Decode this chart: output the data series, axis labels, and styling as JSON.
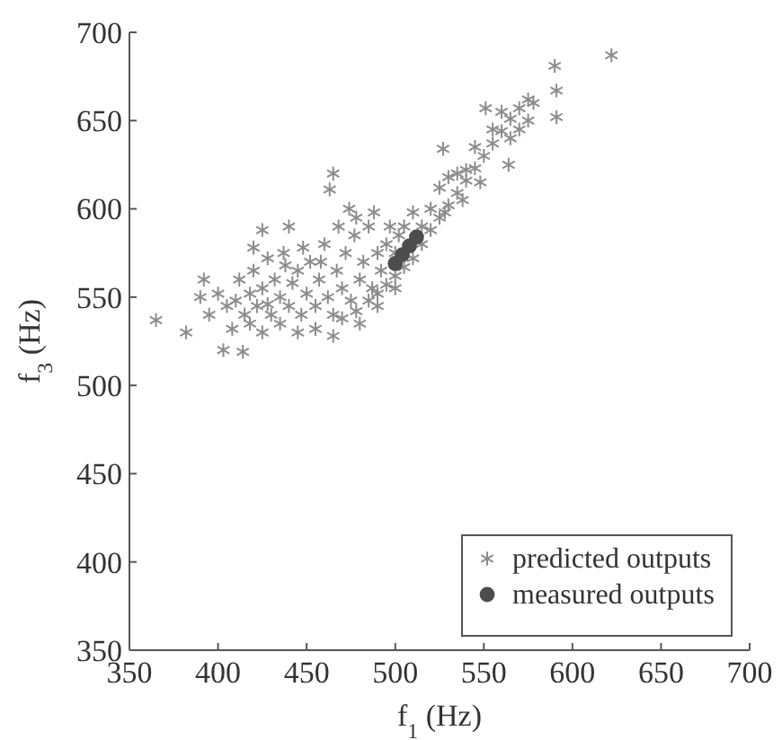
{
  "chart_data": {
    "type": "scatter",
    "xlabel": "f$_{1}$ (Hz)",
    "ylabel": "f$_{3}$ (Hz)",
    "xlim": [
      350,
      700
    ],
    "ylim": [
      350,
      700
    ],
    "xticks": [
      350,
      400,
      450,
      500,
      550,
      600,
      650,
      700
    ],
    "yticks": [
      350,
      400,
      450,
      500,
      550,
      600,
      650,
      700
    ],
    "grid": false,
    "legend": "bottom right",
    "series": [
      {
        "name": "predicted outputs",
        "color": "#8c8c8c",
        "marker": "cross",
        "x": [
          365,
          382,
          390,
          403,
          414,
          465,
          463,
          425,
          474,
          551,
          622,
          590,
          591,
          591,
          564,
          527,
          470,
          478,
          485,
          490,
          495,
          500,
          505,
          510,
          515,
          520,
          525,
          530,
          535,
          540,
          545,
          550,
          555,
          560,
          565,
          570,
          575,
          578,
          520,
          525,
          530,
          535,
          540,
          545,
          555,
          560,
          565,
          570,
          575,
          548,
          538,
          528,
          515,
          400,
          405,
          410,
          412,
          415,
          418,
          420,
          422,
          425,
          428,
          430,
          432,
          435,
          437,
          440,
          442,
          445,
          447,
          450,
          452,
          455,
          457,
          460,
          462,
          465,
          467,
          470,
          472,
          475,
          477,
          480,
          482,
          485,
          487,
          490,
          492,
          495,
          497,
          500,
          502,
          455,
          445,
          435,
          425,
          465,
          480,
          490,
          500,
          505,
          510,
          488,
          478,
          468,
          458,
          448,
          438,
          428,
          418,
          395,
          392,
          408,
          440,
          420
        ],
        "values": [
          537,
          530,
          550,
          520,
          519,
          620,
          611,
          588,
          600,
          657,
          687,
          681,
          667,
          652,
          625,
          634,
          538,
          542,
          548,
          552,
          557,
          562,
          567,
          572,
          580,
          588,
          595,
          602,
          609,
          616,
          623,
          630,
          637,
          644,
          651,
          657,
          662,
          660,
          600,
          612,
          618,
          620,
          622,
          635,
          645,
          655,
          640,
          645,
          650,
          615,
          605,
          598,
          590,
          552,
          545,
          548,
          560,
          540,
          552,
          565,
          545,
          555,
          572,
          540,
          560,
          550,
          575,
          545,
          558,
          565,
          540,
          552,
          570,
          545,
          560,
          580,
          550,
          540,
          565,
          555,
          575,
          548,
          585,
          560,
          570,
          590,
          555,
          575,
          565,
          580,
          590,
          575,
          585,
          532,
          530,
          535,
          530,
          528,
          535,
          545,
          555,
          590,
          598,
          598,
          595,
          590,
          570,
          578,
          568,
          546,
          535,
          540,
          560,
          532,
          590,
          578
        ]
      },
      {
        "name": "measured outputs",
        "color": "#4d4d4d",
        "marker": "circle",
        "x": [
          500,
          504,
          508,
          512
        ],
        "values": [
          569,
          574,
          579,
          584
        ]
      }
    ]
  }
}
